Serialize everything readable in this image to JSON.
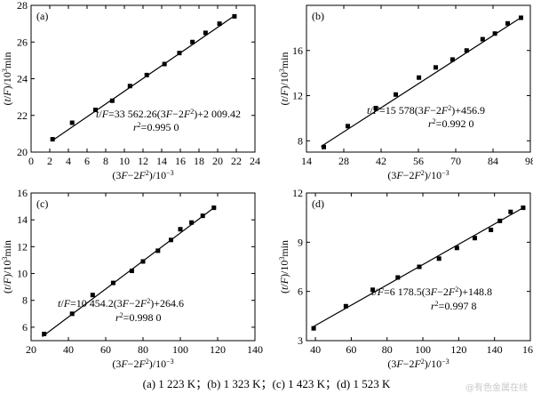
{
  "chart_data": [
    {
      "type": "scatter",
      "panel_label": "(a)",
      "xlabel": "(3F−2F²)/10⁻³",
      "ylabel": "(t/F)/10³min",
      "xlim": [
        0,
        24
      ],
      "ylim": [
        20,
        28
      ],
      "xticks": [
        0,
        2,
        4,
        6,
        8,
        10,
        12,
        14,
        16,
        18,
        20,
        22,
        24
      ],
      "yticks": [
        20,
        22,
        24,
        26,
        28
      ],
      "x": [
        2.3,
        4.4,
        6.9,
        8.7,
        10.6,
        12.4,
        14.3,
        15.9,
        17.3,
        18.7,
        20.2,
        21.8
      ],
      "y": [
        20.7,
        21.6,
        22.3,
        22.8,
        23.6,
        24.2,
        24.8,
        25.4,
        26.0,
        26.5,
        27.0,
        27.4
      ],
      "fit_x": [
        2.2,
        22.0
      ],
      "fit_y": [
        20.6,
        27.5
      ],
      "equation": "t/F=33 562.26(3F−2F²)+2 009.42",
      "r2_label": "r²=0.995 0",
      "legend_position": "none",
      "grid": false
    },
    {
      "type": "scatter",
      "panel_label": "(b)",
      "xlabel": "(3F−2F²)/10⁻³",
      "ylabel": "(t/F)/10³min",
      "xlim": [
        14,
        98
      ],
      "ylim": [
        7,
        20
      ],
      "xticks": [
        14,
        28,
        42,
        56,
        70,
        84,
        98
      ],
      "yticks": [
        8,
        12,
        16
      ],
      "x": [
        20.5,
        29.5,
        40.0,
        47.5,
        56.2,
        62.5,
        68.8,
        74.1,
        80.1,
        84.7,
        89.5,
        94.5
      ],
      "y": [
        7.45,
        9.3,
        10.9,
        12.1,
        13.6,
        14.5,
        15.2,
        16.0,
        17.0,
        17.5,
        18.4,
        18.9
      ],
      "fit_x": [
        19.5,
        95.0
      ],
      "fit_y": [
        7.5,
        19.0
      ],
      "equation": "t/F=15 578(3F−2F²)+456.9",
      "r2_label": "r²=0.992 0",
      "legend_position": "none",
      "grid": false
    },
    {
      "type": "scatter",
      "panel_label": "(c)",
      "xlabel": "(3F−2F²)/10⁻³",
      "ylabel": "(t/F)/10³min",
      "xlim": [
        20,
        140
      ],
      "ylim": [
        5,
        16
      ],
      "xticks": [
        20,
        40,
        60,
        80,
        100,
        120,
        140
      ],
      "yticks": [
        6,
        8,
        10,
        12,
        14,
        16
      ],
      "x": [
        27,
        42,
        53,
        64,
        74,
        80,
        88,
        95,
        100,
        106,
        112,
        118
      ],
      "y": [
        5.5,
        7.0,
        8.4,
        9.3,
        10.2,
        10.9,
        11.7,
        12.5,
        13.3,
        13.8,
        14.3,
        14.9
      ],
      "fit_x": [
        26.0,
        118.0
      ],
      "fit_y": [
        5.3,
        14.9
      ],
      "equation": "t/F=10 454.2(3F−2F²)+264.6",
      "r2_label": "r²=0.998 0",
      "legend_position": "none",
      "grid": false
    },
    {
      "type": "scatter",
      "panel_label": "(d)",
      "xlabel": "(3F−2F²)/10⁻³",
      "ylabel": "(t/F)/10³min",
      "xlim": [
        35,
        160
      ],
      "ylim": [
        3,
        12
      ],
      "xticks": [
        40,
        60,
        80,
        100,
        120,
        140,
        160
      ],
      "yticks": [
        3,
        6,
        9,
        12
      ],
      "x": [
        39,
        57,
        72,
        86,
        98,
        109,
        119,
        129,
        138,
        143,
        149,
        156
      ],
      "y": [
        3.75,
        5.1,
        6.1,
        6.85,
        7.5,
        8.0,
        8.65,
        9.25,
        9.75,
        10.3,
        10.85,
        11.1
      ],
      "fit_x": [
        38.0,
        156.0
      ],
      "fit_y": [
        3.8,
        11.1
      ],
      "equation": "t/F=6 178.5(3F−2F²)+148.8",
      "r2_label": "r²=0.997 8",
      "legend_position": "none",
      "grid": false
    }
  ],
  "caption": "(a) 1 223 K；(b) 1 323 K；(c) 1 423 K；(d) 1 523 K",
  "watermark": "@有色金属在线"
}
